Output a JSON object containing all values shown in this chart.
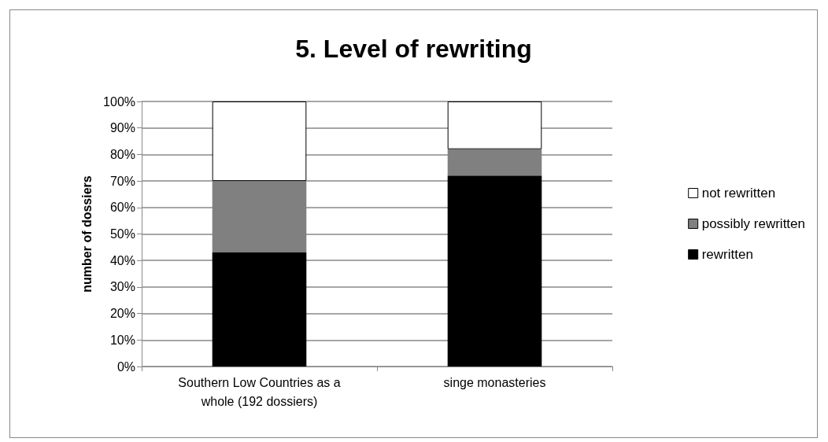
{
  "chart_data": {
    "type": "bar",
    "title": "5. Level of rewriting",
    "ylabel": "number of dossiers",
    "categories": [
      "Southern Low Countries as a whole (192 dossiers)",
      "singe monasteries"
    ],
    "stacked": true,
    "series": [
      {
        "name": "rewritten",
        "color": "#000000",
        "values": [
          43,
          72
        ]
      },
      {
        "name": "possibly rewritten",
        "color": "#808080",
        "values": [
          27,
          10
        ]
      },
      {
        "name": "not rewritten",
        "color": "#ffffff",
        "values": [
          30,
          18
        ]
      }
    ],
    "ylim": [
      0,
      100
    ],
    "yticks": [
      {
        "value": 0,
        "label": "0%"
      },
      {
        "value": 10,
        "label": "10%"
      },
      {
        "value": 20,
        "label": "20%"
      },
      {
        "value": 30,
        "label": "30%"
      },
      {
        "value": 40,
        "label": "40%"
      },
      {
        "value": 50,
        "label": "50%"
      },
      {
        "value": 60,
        "label": "60%"
      },
      {
        "value": 70,
        "label": "70%"
      },
      {
        "value": 80,
        "label": "80%"
      },
      {
        "value": 90,
        "label": "90%"
      },
      {
        "value": 100,
        "label": "100%"
      }
    ],
    "grid": "y",
    "legend": "right"
  }
}
